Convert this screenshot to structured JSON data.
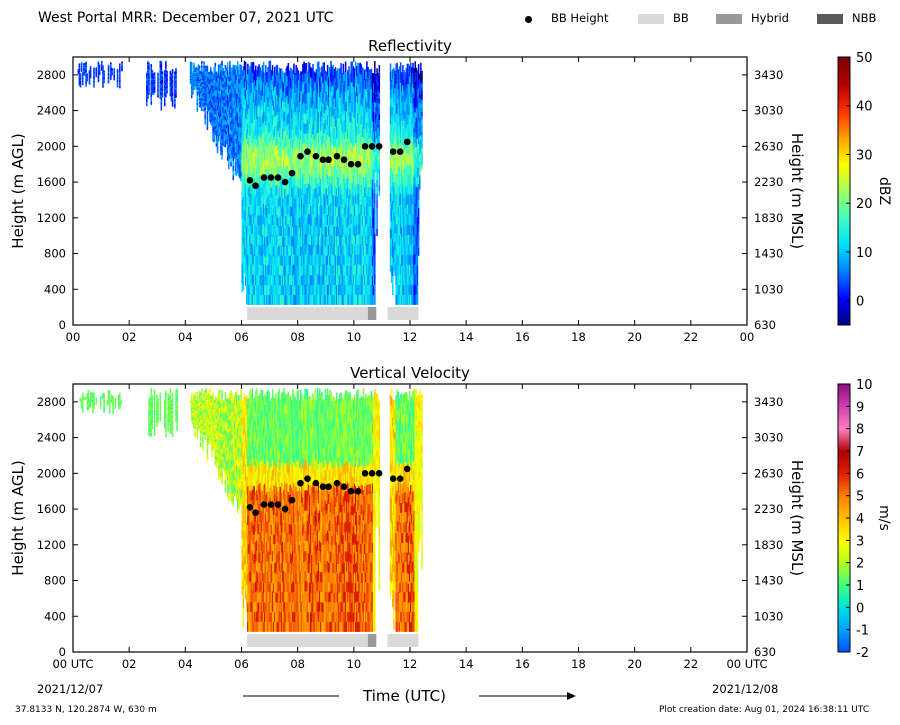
{
  "header": {
    "title": "West Portal MRR:  December 07, 2021 UTC",
    "legend": [
      {
        "label": "BB Height",
        "symbol": "dot",
        "color": "#000000"
      },
      {
        "label": "BB",
        "symbol": "box",
        "color": "#d9d9d9"
      },
      {
        "label": "Hybrid",
        "symbol": "box",
        "color": "#999999"
      },
      {
        "label": "NBB",
        "symbol": "box",
        "color": "#595959"
      }
    ]
  },
  "footer": {
    "location": "37.8133 N, 120.2874 W, 630 m",
    "creation": "Plot creation date: Aug 01, 2024 16:38:11 UTC",
    "xlabel": "Time (UTC)",
    "start_date": "2021/12/07",
    "end_date": "2021/12/08"
  },
  "chart_data": [
    {
      "type": "heatmap",
      "title": "Reflectivity",
      "ylabel": "Height (m AGL)",
      "y2label": "Height (m MSL)",
      "xlim": [
        0,
        24
      ],
      "ylim": [
        0,
        3000
      ],
      "xticks": [
        "00",
        "02",
        "04",
        "06",
        "08",
        "10",
        "12",
        "14",
        "16",
        "18",
        "20",
        "22",
        "00"
      ],
      "yticks": [
        0,
        400,
        800,
        1200,
        1600,
        2000,
        2400,
        2800
      ],
      "y2ticks": [
        "630",
        "1030",
        "1430",
        "1830",
        "2230",
        "2630",
        "3030",
        "3430"
      ],
      "colorbar": {
        "label": "dBZ",
        "range": [
          -5,
          50
        ],
        "ticks": [
          0,
          10,
          20,
          30,
          40,
          50
        ],
        "colors": [
          "#000080",
          "#0000ff",
          "#0080ff",
          "#00e0ff",
          "#40ffc0",
          "#a0ff60",
          "#ffff00",
          "#ffa000",
          "#ff3000",
          "#b00000",
          "#800000"
        ]
      },
      "bb_height": {
        "x": [
          6.3,
          6.5,
          6.8,
          7.05,
          7.3,
          7.55,
          7.8,
          8.1,
          8.35,
          8.65,
          8.9,
          9.1,
          9.4,
          9.65,
          9.9,
          10.15,
          10.4,
          10.65,
          10.9,
          11.4,
          11.65,
          11.9
        ],
        "y": [
          1620,
          1560,
          1650,
          1650,
          1650,
          1600,
          1700,
          1890,
          1940,
          1890,
          1850,
          1850,
          1890,
          1850,
          1800,
          1800,
          2000,
          2000,
          2000,
          1940,
          1940,
          2050
        ]
      },
      "bb_bar": [
        {
          "start": 6.2,
          "end": 10.5,
          "class": "BB"
        },
        {
          "start": 10.5,
          "end": 10.8,
          "class": "Hybrid"
        },
        {
          "start": 11.2,
          "end": 12.3,
          "class": "BB"
        }
      ]
    },
    {
      "type": "heatmap",
      "title": "Vertical Velocity",
      "ylabel": "Height (m AGL)",
      "y2label": "Height (m MSL)",
      "xlim": [
        0,
        24
      ],
      "ylim": [
        0,
        3000
      ],
      "xticks": [
        "00 UTC",
        "02",
        "04",
        "06",
        "08",
        "10",
        "12",
        "14",
        "16",
        "18",
        "20",
        "22",
        "00 UTC"
      ],
      "yticks": [
        0,
        400,
        800,
        1200,
        1600,
        2000,
        2400,
        2800
      ],
      "y2ticks": [
        "630",
        "1030",
        "1430",
        "1830",
        "2230",
        "2630",
        "3030",
        "3430"
      ],
      "colorbar": {
        "label": "m/s",
        "range": [
          -2,
          10
        ],
        "ticks": [
          -2,
          -1,
          0,
          1,
          2,
          3,
          4,
          5,
          6,
          7,
          8,
          9,
          10
        ],
        "colors": [
          "#0050ff",
          "#00a0ff",
          "#00e0e0",
          "#40ff80",
          "#b0ff20",
          "#ffff00",
          "#ffc000",
          "#ff8000",
          "#e02000",
          "#b00000",
          "#ff80c0",
          "#d040b0",
          "#901080"
        ]
      },
      "bb_height": {
        "x": [
          6.3,
          6.5,
          6.8,
          7.05,
          7.3,
          7.55,
          7.8,
          8.1,
          8.35,
          8.65,
          8.9,
          9.1,
          9.4,
          9.65,
          9.9,
          10.15,
          10.4,
          10.65,
          10.9,
          11.4,
          11.65,
          11.9
        ],
        "y": [
          1620,
          1560,
          1650,
          1650,
          1650,
          1600,
          1700,
          1890,
          1940,
          1890,
          1850,
          1850,
          1890,
          1850,
          1800,
          1800,
          2000,
          2000,
          2000,
          1940,
          1940,
          2050
        ]
      },
      "bb_bar": [
        {
          "start": 6.2,
          "end": 10.5,
          "class": "BB"
        },
        {
          "start": 10.5,
          "end": 10.8,
          "class": "Hybrid"
        },
        {
          "start": 11.2,
          "end": 12.3,
          "class": "BB"
        }
      ]
    }
  ]
}
